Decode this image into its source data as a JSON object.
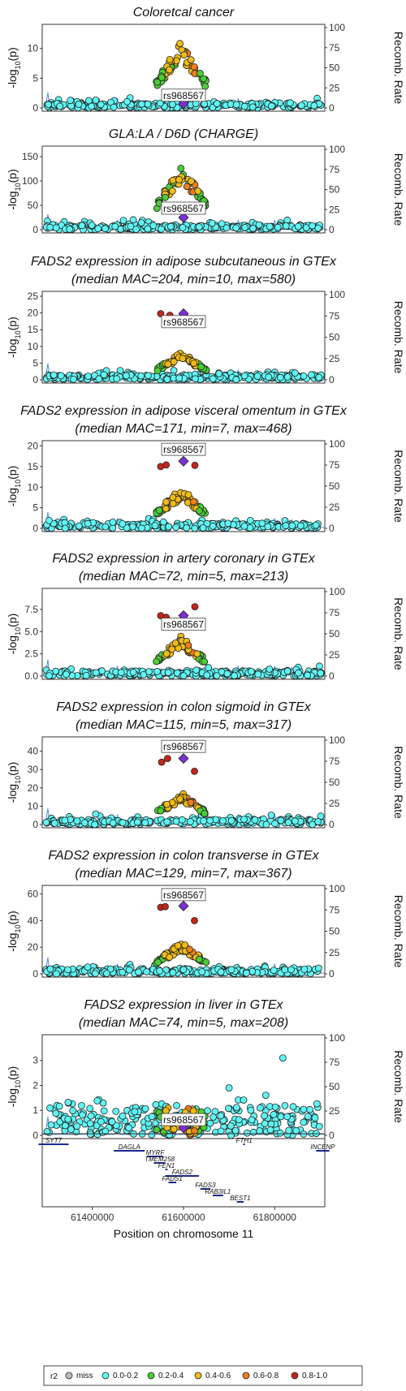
{
  "chart_data": {
    "type": "scatter",
    "lead_snp": "rs968567",
    "x_label": "Position on chromosome 11",
    "x_ticks": [
      "61400000",
      "61600000",
      "61800000"
    ],
    "recomb_label": "Recomb. Rate",
    "recomb_ticks": [
      "0",
      "25",
      "50",
      "75",
      "100"
    ],
    "y_label": "-log10(p)",
    "legend": {
      "title": "r2",
      "items": [
        {
          "label": "miss",
          "color": "#bdbdbd"
        },
        {
          "label": "0.0-0.2",
          "color": "#5ff5f5"
        },
        {
          "label": "0.2-0.4",
          "color": "#4ccd35"
        },
        {
          "label": "0.4-0.6",
          "color": "#f0bb14"
        },
        {
          "label": "0.6-0.8",
          "color": "#ee7d1b"
        },
        {
          "label": "0.8-1.0",
          "color": "#c0271a"
        }
      ]
    },
    "panels": [
      {
        "title": [
          "Coloretcal cancer"
        ],
        "yticks": [
          0,
          5,
          10
        ],
        "ymax": 13.5,
        "peak": 10.8,
        "hump": 1.0,
        "lead": 0.7,
        "hits": [],
        "label_y": 1.8
      },
      {
        "title": [
          "GLA:LA / D6D (CHARGE)"
        ],
        "yticks": [
          0,
          50,
          100,
          150
        ],
        "ymax": 165,
        "peak": 130,
        "hump": 0.75,
        "lead": 25,
        "hits": [],
        "label_y": 40
      },
      {
        "title": [
          "FADS2 expression in adipose subcutaneous in GTEx",
          "(median MAC=204, min=10, max=580)"
        ],
        "yticks": [
          0,
          5,
          10,
          15,
          20,
          25
        ],
        "ymax": 25.5,
        "peak": 8,
        "hump": 1.0,
        "lead": 19.8,
        "hits": [
          [
            61550000,
            19.8
          ],
          [
            61570000,
            19.3
          ],
          [
            61602000,
            19.2
          ]
        ],
        "label_y": 16.8
      },
      {
        "title": [
          "FADS2 expression in adipose visceral omentum in GTEx",
          "(median MAC=171, min=7, max=468)"
        ],
        "yticks": [
          0,
          5,
          10,
          15,
          20
        ],
        "ymax": 20.5,
        "peak": 9.5,
        "hump": 1.0,
        "lead": 16.3,
        "hits": [
          [
            61550000,
            15.0
          ],
          [
            61562000,
            15.4
          ],
          [
            61625000,
            15.3
          ]
        ],
        "label_y": 18.7
      },
      {
        "title": [
          "FADS2 expression in artery coronary in GTEx",
          "(median MAC=72, min=5, max=213)"
        ],
        "yticks": [
          0,
          2.5,
          5.0,
          7.5
        ],
        "ylabels": [
          "0.0",
          "2.5",
          "5.0",
          "7.5"
        ],
        "ymax": 9.5,
        "peak": 4.3,
        "hump": 1.0,
        "lead": 6.8,
        "hits": [
          [
            61550000,
            6.8
          ],
          [
            61562000,
            6.6
          ],
          [
            61625000,
            7.8
          ]
        ],
        "label_y": 5.6
      },
      {
        "title": [
          "FADS2 expression in colon sigmoid in GTEx",
          "(median MAC=115, min=5, max=317)"
        ],
        "yticks": [
          0,
          10,
          20,
          30,
          40
        ],
        "ymax": 46,
        "peak": 17,
        "hump": 1.0,
        "lead": 36,
        "hits": [
          [
            61552000,
            34
          ],
          [
            61565000,
            36
          ],
          [
            61624000,
            29
          ]
        ],
        "label_y": 41.5
      },
      {
        "title": [
          "FADS2 expression in colon transverse in GTEx",
          "(median MAC=129, min=7, max=367)"
        ],
        "yticks": [
          0,
          20,
          40,
          60
        ],
        "ymax": 64,
        "peak": 23,
        "hump": 1.0,
        "lead": 51,
        "hits": [
          [
            61550000,
            50
          ],
          [
            61560000,
            50.5
          ],
          [
            61624000,
            40
          ]
        ],
        "label_y": 58
      },
      {
        "title": [
          "FADS2 expression in liver in GTEx",
          "(median MAC=74, min=5, max=208)"
        ],
        "yticks": [
          0,
          1,
          2,
          3
        ],
        "ymax": 3.9,
        "peak": 1.1,
        "hump": 0.5,
        "lead": 0.3,
        "hits": [
          [
            61818000,
            3.1
          ],
          [
            61700000,
            1.9
          ]
        ],
        "label_y": 0.55
      }
    ],
    "genes": [
      {
        "name": "SYT7",
        "start": 61282000,
        "end": 61348000,
        "row": 0
      },
      {
        "name": "DAGLA",
        "start": 61447000,
        "end": 61515000,
        "row": 1
      },
      {
        "name": "INCENP",
        "start": 61891000,
        "end": 61920000,
        "row": 1
      },
      {
        "name": "FTH1",
        "start": 61731000,
        "end": 61735000,
        "row": 0
      },
      {
        "name": "MYRF",
        "start": 61520000,
        "end": 61555000,
        "row": 2
      },
      {
        "name": "TMEM258",
        "start": 61535000,
        "end": 61560000,
        "row": 3
      },
      {
        "name": "FEN1",
        "start": 61560000,
        "end": 61565000,
        "row": 4
      },
      {
        "name": "FADS2",
        "start": 61560000,
        "end": 61634000,
        "row": 5
      },
      {
        "name": "FADS1",
        "start": 61567000,
        "end": 61584000,
        "row": 6
      },
      {
        "name": "FADS3",
        "start": 61637000,
        "end": 61659000,
        "row": 7
      },
      {
        "name": "RAB3IL1",
        "start": 61664000,
        "end": 61687000,
        "row": 8
      },
      {
        "name": "BEST1",
        "start": 61717000,
        "end": 61732000,
        "row": 9
      }
    ],
    "x_range": [
      61290000,
      61910000
    ],
    "recomb_range": [
      0,
      100
    ]
  }
}
